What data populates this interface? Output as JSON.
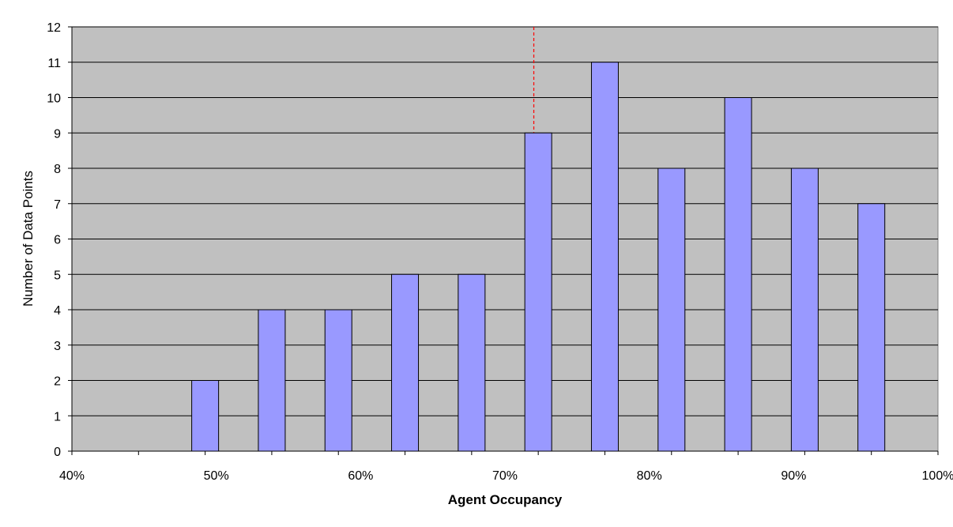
{
  "chart_data": {
    "type": "bar",
    "categories": [
      "40%",
      "45%",
      "50%",
      "55%",
      "60%",
      "65%",
      "70%",
      "75%",
      "80%",
      "85%",
      "90%",
      "95%"
    ],
    "values": [
      0,
      2,
      4,
      4,
      5,
      5,
      9,
      11,
      8,
      10,
      8,
      7
    ],
    "x_tick_labels": [
      "40%",
      "50%",
      "60%",
      "70%",
      "80%",
      "90%",
      "100%"
    ],
    "y_ticks": [
      0,
      1,
      2,
      3,
      4,
      5,
      6,
      7,
      8,
      9,
      10,
      11,
      12
    ],
    "xlabel": "Agent Occupancy",
    "ylabel": "Number of Data Points",
    "ylim": [
      0,
      12
    ],
    "reference_line": {
      "x": 0.72,
      "style": "dashed",
      "color": "#ff0000"
    },
    "grid": true,
    "colors": {
      "bar": "#9999ff",
      "plot_background": "#c0c0c0",
      "gridline": "#000000"
    }
  }
}
